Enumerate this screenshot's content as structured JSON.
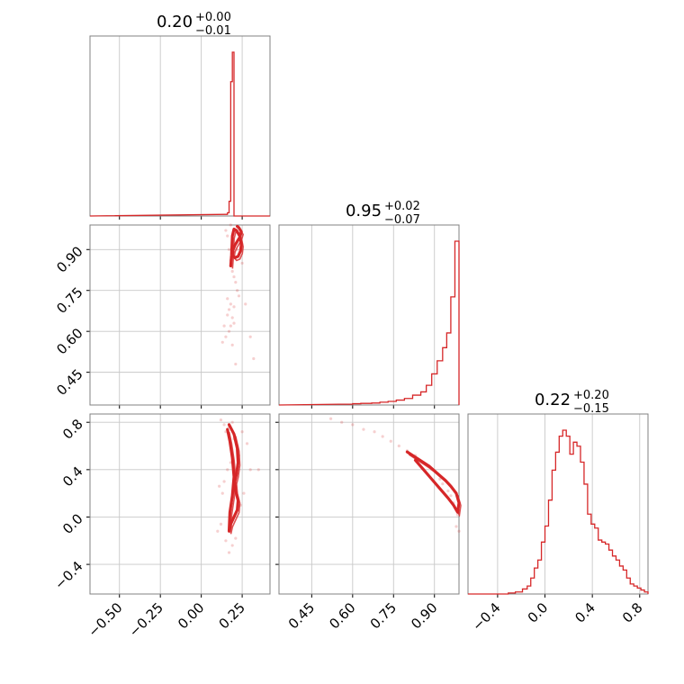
{
  "chart_data": {
    "type": "corner",
    "color": "#d62728",
    "params": [
      {
        "median": "0.20",
        "plus": "+0.00",
        "minus": "−0.01",
        "range": [
          -0.68,
          0.42
        ],
        "ticks": [
          -0.5,
          -0.25,
          0.0,
          0.25
        ],
        "tick_labels": [
          "−0.50",
          "−0.25",
          "0.00",
          "0.25"
        ]
      },
      {
        "median": "0.95",
        "plus": "+0.02",
        "minus": "−0.07",
        "range": [
          0.33,
          0.99
        ],
        "ticks": [
          0.45,
          0.6,
          0.75,
          0.9
        ],
        "tick_labels": [
          "0.45",
          "0.60",
          "0.75",
          "0.90"
        ]
      },
      {
        "median": "0.22",
        "plus": "+0.20",
        "minus": "−0.15",
        "range": [
          -0.65,
          0.87
        ],
        "ticks": [
          -0.4,
          0.0,
          0.4,
          0.8
        ],
        "tick_labels": [
          "−0.4",
          "0.0",
          "0.4",
          "0.8"
        ]
      }
    ],
    "hist_1d": [
      {
        "param": 0,
        "bins": [
          0.15,
          0.16,
          0.17,
          0.18,
          0.19,
          0.2,
          0.21,
          0.22
        ],
        "counts": [
          0.01,
          0.02,
          0.09,
          0.82,
          1.0,
          0.0,
          0.0,
          0.0
        ]
      },
      {
        "param": 1,
        "bins": [
          0.55,
          0.6,
          0.63,
          0.67,
          0.7,
          0.73,
          0.76,
          0.79,
          0.82,
          0.85,
          0.87,
          0.89,
          0.91,
          0.93,
          0.945,
          0.96,
          0.975,
          0.99
        ],
        "counts": [
          0.005,
          0.008,
          0.01,
          0.012,
          0.017,
          0.022,
          0.03,
          0.04,
          0.06,
          0.08,
          0.12,
          0.19,
          0.27,
          0.35,
          0.44,
          0.66,
          1.0,
          1.0
        ]
      },
      {
        "param": 2,
        "bins": [
          -0.65,
          -0.31,
          -0.25,
          -0.19,
          -0.15,
          -0.12,
          -0.09,
          -0.06,
          -0.03,
          0.0,
          0.03,
          0.06,
          0.09,
          0.12,
          0.15,
          0.18,
          0.21,
          0.24,
          0.27,
          0.3,
          0.33,
          0.36,
          0.39,
          0.42,
          0.45,
          0.48,
          0.51,
          0.54,
          0.57,
          0.6,
          0.63,
          0.66,
          0.69,
          0.72,
          0.75,
          0.78,
          0.81,
          0.84
        ],
        "counts": [
          0.0,
          0.005,
          0.01,
          0.025,
          0.04,
          0.08,
          0.13,
          0.17,
          0.26,
          0.34,
          0.47,
          0.62,
          0.71,
          0.79,
          0.82,
          0.79,
          0.7,
          0.76,
          0.74,
          0.66,
          0.55,
          0.4,
          0.35,
          0.33,
          0.27,
          0.26,
          0.25,
          0.22,
          0.19,
          0.17,
          0.14,
          0.12,
          0.08,
          0.05,
          0.04,
          0.03,
          0.02,
          0.01
        ]
      }
    ],
    "contours_2d": [
      {
        "x_param": 0,
        "y_param": 1,
        "line_x": [
          0.22,
          0.23,
          0.245,
          0.235,
          0.22,
          0.205,
          0.195,
          0.19,
          0.205,
          0.225,
          0.24,
          0.245,
          0.235,
          0.215,
          0.2,
          0.19,
          0.185,
          0.18
        ],
        "line_y": [
          0.985,
          0.98,
          0.965,
          0.945,
          0.93,
          0.915,
          0.9,
          0.88,
          0.87,
          0.875,
          0.895,
          0.92,
          0.95,
          0.97,
          0.975,
          0.95,
          0.88,
          0.84
        ],
        "scatter_x": [
          0.15,
          0.16,
          0.17,
          0.18,
          0.19,
          0.2,
          0.21,
          0.22,
          0.23,
          0.18,
          0.17,
          0.16,
          0.19,
          0.2,
          0.17,
          0.14,
          0.15,
          0.13,
          0.25,
          0.27,
          0.3,
          0.32,
          0.21,
          0.19,
          0.18,
          0.2,
          0.16,
          0.22,
          0.24,
          0.18
        ],
        "scatter_y": [
          0.97,
          0.95,
          0.9,
          0.86,
          0.82,
          0.8,
          0.78,
          0.75,
          0.73,
          0.7,
          0.68,
          0.66,
          0.65,
          0.63,
          0.6,
          0.62,
          0.58,
          0.56,
          0.85,
          0.7,
          0.58,
          0.5,
          0.48,
          0.55,
          0.62,
          0.69,
          0.72,
          0.9,
          0.96,
          0.99
        ]
      },
      {
        "x_param": 0,
        "y_param": 2,
        "line_x": [
          0.17,
          0.2,
          0.22,
          0.225,
          0.215,
          0.205,
          0.21,
          0.225,
          0.22,
          0.2,
          0.18,
          0.17,
          0.175,
          0.19,
          0.2,
          0.19,
          0.175,
          0.16
        ],
        "line_y": [
          0.78,
          0.7,
          0.58,
          0.46,
          0.36,
          0.3,
          0.22,
          0.14,
          0.06,
          0.0,
          -0.06,
          -0.12,
          0.04,
          0.18,
          0.34,
          0.5,
          0.64,
          0.74
        ],
        "scatter_x": [
          0.12,
          0.14,
          0.15,
          0.17,
          0.19,
          0.2,
          0.22,
          0.23,
          0.18,
          0.16,
          0.14,
          0.13,
          0.11,
          0.12,
          0.25,
          0.28,
          0.3,
          0.35,
          0.21,
          0.19,
          0.17,
          0.15,
          0.1,
          0.24,
          0.26
        ],
        "scatter_y": [
          0.82,
          0.78,
          0.72,
          0.76,
          0.8,
          0.66,
          0.6,
          0.52,
          0.46,
          0.4,
          0.3,
          0.2,
          0.26,
          -0.06,
          0.72,
          0.62,
          0.4,
          0.4,
          -0.18,
          -0.24,
          -0.3,
          -0.2,
          -0.12,
          0.1,
          0.2
        ]
      },
      {
        "x_param": 1,
        "y_param": 2,
        "line_x": [
          0.8,
          0.84,
          0.88,
          0.91,
          0.94,
          0.96,
          0.98,
          0.99,
          0.985,
          0.97,
          0.95,
          0.92,
          0.89,
          0.86,
          0.83
        ],
        "line_y": [
          0.55,
          0.49,
          0.43,
          0.37,
          0.31,
          0.26,
          0.2,
          0.12,
          0.04,
          0.1,
          0.16,
          0.24,
          0.32,
          0.4,
          0.48
        ],
        "scatter_x": [
          0.52,
          0.56,
          0.6,
          0.64,
          0.68,
          0.71,
          0.74,
          0.77,
          0.8,
          0.83,
          0.86,
          0.89,
          0.92,
          0.95,
          0.97,
          0.985,
          0.99,
          0.98,
          0.96,
          0.93
        ],
        "scatter_y": [
          0.83,
          0.8,
          0.78,
          0.74,
          0.72,
          0.68,
          0.64,
          0.6,
          0.56,
          0.52,
          0.46,
          0.4,
          0.32,
          0.22,
          0.12,
          0.02,
          -0.12,
          -0.08,
          0.18,
          0.28
        ]
      }
    ],
    "grid": true
  }
}
